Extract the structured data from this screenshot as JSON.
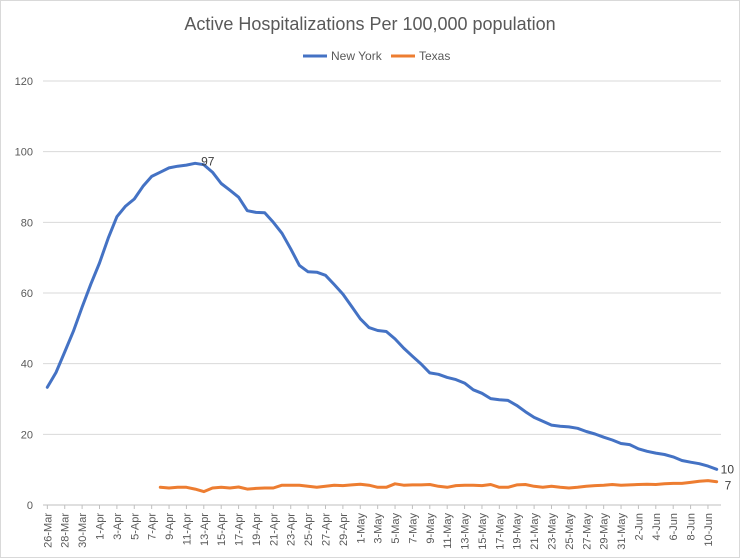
{
  "chart_data": {
    "type": "line",
    "title": "Active Hospitalizations Per 100,000 population",
    "xlabel": "",
    "ylabel": "",
    "ylim": [
      0,
      120
    ],
    "y_ticks": [
      0,
      20,
      40,
      60,
      80,
      100,
      120
    ],
    "grid": "horizontal",
    "legend_position": "top",
    "categories": [
      "26-Mar",
      "27-Mar",
      "28-Mar",
      "29-Mar",
      "30-Mar",
      "31-Mar",
      "1-Apr",
      "2-Apr",
      "3-Apr",
      "4-Apr",
      "5-Apr",
      "6-Apr",
      "7-Apr",
      "8-Apr",
      "9-Apr",
      "10-Apr",
      "11-Apr",
      "12-Apr",
      "13-Apr",
      "14-Apr",
      "15-Apr",
      "16-Apr",
      "17-Apr",
      "18-Apr",
      "19-Apr",
      "20-Apr",
      "21-Apr",
      "22-Apr",
      "23-Apr",
      "24-Apr",
      "25-Apr",
      "26-Apr",
      "27-Apr",
      "28-Apr",
      "29-Apr",
      "30-Apr",
      "1-May",
      "2-May",
      "3-May",
      "4-May",
      "5-May",
      "6-May",
      "7-May",
      "8-May",
      "9-May",
      "10-May",
      "11-May",
      "12-May",
      "13-May",
      "14-May",
      "15-May",
      "16-May",
      "17-May",
      "18-May",
      "19-May",
      "20-May",
      "21-May",
      "22-May",
      "23-May",
      "24-May",
      "25-May",
      "26-May",
      "27-May",
      "28-May",
      "29-May",
      "30-May",
      "31-May",
      "1-Jun",
      "2-Jun",
      "3-Jun",
      "4-Jun",
      "5-Jun",
      "6-Jun",
      "7-Jun",
      "8-Jun",
      "9-Jun",
      "10-Jun",
      "11-Jun"
    ],
    "tick_labels": [
      "26-Mar",
      "28-Mar",
      "30-Mar",
      "1-Apr",
      "3-Apr",
      "5-Apr",
      "7-Apr",
      "9-Apr",
      "11-Apr",
      "13-Apr",
      "15-Apr",
      "17-Apr",
      "19-Apr",
      "21-Apr",
      "23-Apr",
      "25-Apr",
      "27-Apr",
      "29-Apr",
      "1-May",
      "3-May",
      "5-May",
      "7-May",
      "9-May",
      "11-May",
      "13-May",
      "15-May",
      "17-May",
      "19-May",
      "21-May",
      "23-May",
      "25-May",
      "27-May",
      "29-May",
      "31-May",
      "2-Jun",
      "4-Jun",
      "6-Jun",
      "8-Jun",
      "10-Jun"
    ],
    "series": [
      {
        "name": "New York",
        "color": "#4472C4",
        "values": [
          33.3,
          37.5,
          43.3,
          49.2,
          56.0,
          62.5,
          68.5,
          75.5,
          81.6,
          84.6,
          86.6,
          90.2,
          93.0,
          94.2,
          95.4,
          95.9,
          96.2,
          96.7,
          96.3,
          94.2,
          91.0,
          89.1,
          87.1,
          83.3,
          82.8,
          82.7,
          80.0,
          76.9,
          72.5,
          67.8,
          66.0,
          65.9,
          65.0,
          62.4,
          59.7,
          56.2,
          52.7,
          50.2,
          49.4,
          49.1,
          47.0,
          44.4,
          42.1,
          39.9,
          37.4,
          37.0,
          36.1,
          35.5,
          34.5,
          32.6,
          31.6,
          30.1,
          29.8,
          29.6,
          28.2,
          26.4,
          24.8,
          23.7,
          22.6,
          22.3,
          22.1,
          21.7,
          20.8,
          20.1,
          19.2,
          18.4,
          17.4,
          17.1,
          15.9,
          15.2,
          14.7,
          14.3,
          13.6,
          12.6,
          12.1,
          11.7,
          11.0,
          10.1
        ],
        "end_label": "10",
        "peak_label": "97",
        "peak_index": 17
      },
      {
        "name": "Texas",
        "color": "#ED7D31",
        "values": [
          null,
          null,
          null,
          null,
          null,
          null,
          null,
          null,
          null,
          null,
          null,
          null,
          null,
          5.0,
          4.8,
          5.0,
          5.0,
          4.5,
          3.8,
          4.8,
          5.0,
          4.8,
          5.1,
          4.5,
          4.7,
          4.8,
          4.8,
          5.6,
          5.6,
          5.6,
          5.3,
          5.0,
          5.3,
          5.6,
          5.5,
          5.7,
          5.9,
          5.6,
          5.0,
          5.0,
          6.0,
          5.6,
          5.7,
          5.7,
          5.8,
          5.3,
          5.0,
          5.5,
          5.6,
          5.6,
          5.5,
          5.8,
          5.0,
          5.0,
          5.7,
          5.8,
          5.3,
          5.0,
          5.3,
          5.0,
          4.8,
          5.0,
          5.3,
          5.5,
          5.6,
          5.8,
          5.6,
          5.7,
          5.8,
          5.9,
          5.8,
          6.0,
          6.1,
          6.1,
          6.4,
          6.7,
          6.9,
          6.6
        ],
        "end_label": "7"
      }
    ]
  }
}
